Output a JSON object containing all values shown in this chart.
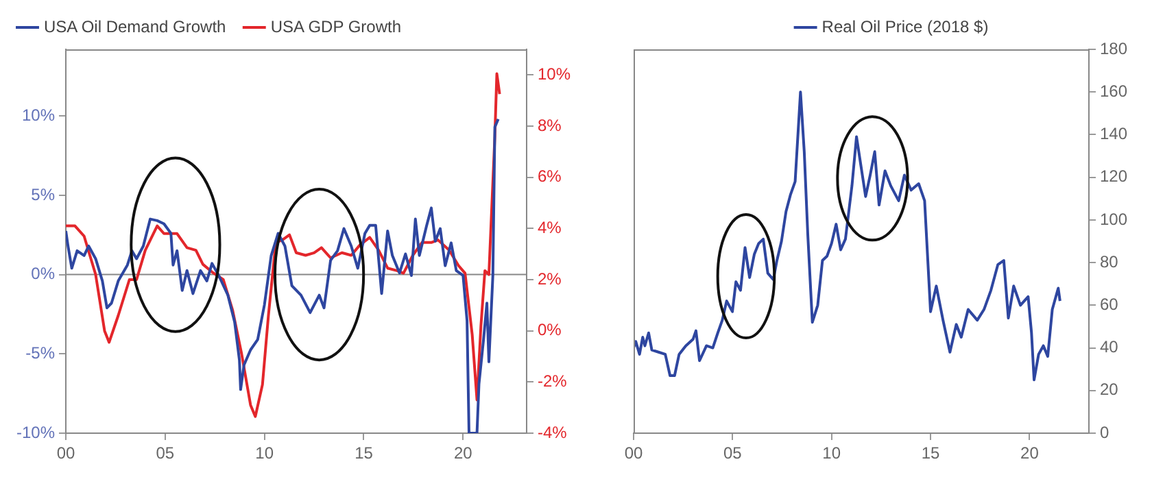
{
  "chart_data": [
    {
      "type": "line",
      "xlim": [
        0,
        23.2
      ],
      "xticks": [
        {
          "value": 0,
          "label": "00"
        },
        {
          "value": 5,
          "label": "05"
        },
        {
          "value": 10,
          "label": "10"
        },
        {
          "value": 15,
          "label": "15"
        },
        {
          "value": 20,
          "label": "20"
        }
      ],
      "ylim": [
        -10,
        14.2
      ],
      "yticks": [
        {
          "value": -10,
          "label": "-10%"
        },
        {
          "value": -5,
          "label": "-5%"
        },
        {
          "value": 0,
          "label": "0%"
        },
        {
          "value": 5,
          "label": "5%"
        },
        {
          "value": 10,
          "label": "10%"
        }
      ],
      "y2lim": [
        -4,
        11
      ],
      "y2ticks": [
        {
          "value": -4,
          "label": "-4%"
        },
        {
          "value": -2,
          "label": "-2%"
        },
        {
          "value": 0,
          "label": "0%"
        },
        {
          "value": 2,
          "label": "2%"
        },
        {
          "value": 4,
          "label": "4%"
        },
        {
          "value": 6,
          "label": "6%"
        },
        {
          "value": 8,
          "label": "8%"
        },
        {
          "value": 10,
          "label": "10%"
        }
      ],
      "grid": false,
      "legend": "top left",
      "marker": "none",
      "line_style": "solid",
      "ref_lines": [
        {
          "axis": "y",
          "value": 0,
          "color": "#888888"
        }
      ],
      "series": [
        {
          "name": "USA Oil Demand Growth",
          "color": "#2e46a0",
          "x": [
            0,
            0.11,
            0.3,
            0.57,
            0.92,
            1.15,
            1.5,
            1.84,
            2.07,
            2.3,
            2.64,
            3.1,
            3.33,
            3.56,
            3.9,
            4.25,
            4.6,
            4.94,
            5.29,
            5.4,
            5.6,
            5.86,
            6.1,
            6.4,
            6.78,
            7.1,
            7.36,
            7.7,
            8.16,
            8.5,
            8.74,
            8.8,
            8.97,
            9.3,
            9.66,
            10,
            10.34,
            10.69,
            11.03,
            11.38,
            11.84,
            12.3,
            12.76,
            13.0,
            13.33,
            13.68,
            14.0,
            14.37,
            14.7,
            15.06,
            15.3,
            15.6,
            15.9,
            16.2,
            16.44,
            16.8,
            17.1,
            17.4,
            17.6,
            17.8,
            18.16,
            18.4,
            18.6,
            18.85,
            19.1,
            19.4,
            19.66,
            20,
            20.2,
            20.3,
            20.7,
            20.8,
            21.03,
            21.2,
            21.3,
            21.5,
            21.6,
            21.77
          ],
          "values": [
            2.75,
            1.8,
            0.4,
            1.5,
            1.2,
            1.8,
            1.0,
            -0.4,
            -2.1,
            -1.8,
            -0.4,
            0.6,
            1.5,
            1.0,
            1.8,
            3.5,
            3.4,
            3.2,
            2.6,
            0.6,
            1.5,
            -1.0,
            0.25,
            -1.2,
            0.25,
            -0.4,
            0.7,
            -0.06,
            -1.3,
            -3.0,
            -5.4,
            -7.25,
            -5.7,
            -4.75,
            -4.1,
            -1.9,
            1.2,
            2.6,
            1.8,
            -0.7,
            -1.3,
            -2.4,
            -1.3,
            -2.1,
            0.9,
            1.5,
            2.9,
            1.8,
            0.4,
            2.6,
            3.1,
            3.1,
            -1.2,
            2.75,
            1.2,
            0.1,
            1.3,
            -0.06,
            3.5,
            1.2,
            3.06,
            4.2,
            2.1,
            2.9,
            0.56,
            2.0,
            0.25,
            -0.06,
            -2.9,
            -10,
            -10,
            -6.9,
            -4.1,
            -1.8,
            -5.5,
            -0.06,
            9.3,
            9.8
          ]
        },
        {
          "name": "USA GDP Growth",
          "color": "#e3262b",
          "axis": "y2",
          "x": [
            0,
            0.46,
            0.92,
            1.5,
            1.95,
            2.18,
            2.64,
            3.2,
            3.56,
            4.0,
            4.6,
            4.94,
            5.6,
            6.1,
            6.55,
            6.9,
            7.36,
            7.93,
            8.4,
            8.85,
            9.3,
            9.54,
            9.9,
            10.2,
            10.57,
            10.9,
            11.26,
            11.6,
            12.07,
            12.5,
            12.87,
            13.33,
            13.9,
            14.37,
            14.8,
            15.3,
            15.75,
            16.2,
            16.67,
            17.0,
            17.47,
            17.93,
            18.4,
            18.74,
            19.3,
            19.77,
            20.1,
            20.46,
            20.7,
            20.9,
            21.1,
            21.3,
            21.6,
            21.7,
            21.84
          ],
          "values": [
            4.1,
            4.1,
            3.7,
            2.2,
            0.0,
            -0.45,
            0.6,
            2.0,
            2.0,
            3.15,
            4.1,
            3.8,
            3.8,
            3.25,
            3.15,
            2.6,
            2.3,
            2.0,
            0.8,
            -0.9,
            -2.9,
            -3.35,
            -2.1,
            0.6,
            3.45,
            3.55,
            3.75,
            3.05,
            2.95,
            3.05,
            3.25,
            2.85,
            3.05,
            2.95,
            3.35,
            3.65,
            3.15,
            2.45,
            2.35,
            2.25,
            2.95,
            3.45,
            3.45,
            3.55,
            3.15,
            2.55,
            2.25,
            -0.15,
            -2.7,
            0.2,
            2.35,
            2.2,
            7.6,
            10.05,
            9.25
          ]
        }
      ]
    },
    {
      "type": "line",
      "xlim": [
        0,
        23
      ],
      "xticks": [
        {
          "value": 0,
          "label": "00"
        },
        {
          "value": 5,
          "label": "05"
        },
        {
          "value": 10,
          "label": "10"
        },
        {
          "value": 15,
          "label": "15"
        },
        {
          "value": 20,
          "label": "20"
        }
      ],
      "ylim": [
        0,
        180
      ],
      "yticks": [
        0,
        20,
        40,
        60,
        80,
        100,
        120,
        140,
        160,
        180
      ],
      "grid": false,
      "legend": "top",
      "marker": "none",
      "line_style": "solid",
      "series": [
        {
          "name": "Real Oil Price (2018 $)",
          "color": "#2e46a0",
          "x": [
            0,
            0.11,
            0.3,
            0.46,
            0.57,
            0.76,
            0.92,
            1.26,
            1.6,
            1.84,
            2.07,
            2.3,
            2.64,
            3.0,
            3.15,
            3.33,
            3.68,
            4.0,
            4.25,
            4.48,
            4.7,
            4.99,
            5.17,
            5.4,
            5.63,
            5.86,
            6.1,
            6.32,
            6.55,
            6.78,
            7.06,
            7.24,
            7.47,
            7.7,
            7.93,
            8.16,
            8.43,
            8.62,
            8.8,
            9.03,
            9.3,
            9.54,
            9.77,
            10,
            10.23,
            10.46,
            10.7,
            11.03,
            11.26,
            11.49,
            11.72,
            11.95,
            12.18,
            12.4,
            12.7,
            12.99,
            13.39,
            13.68,
            14.02,
            14.4,
            14.7,
            15.0,
            15.29,
            15.63,
            15.98,
            16.3,
            16.55,
            16.9,
            17.36,
            17.7,
            18.05,
            18.4,
            18.7,
            18.93,
            19.2,
            19.54,
            19.93,
            20.1,
            20.23,
            20.46,
            20.7,
            20.92,
            21.15,
            21.45,
            21.54
          ],
          "values": [
            40,
            43,
            37,
            45,
            41,
            47,
            39,
            38,
            37,
            27,
            27,
            37,
            41,
            44,
            48,
            34,
            41,
            40,
            47,
            53,
            62,
            57,
            71,
            67,
            87,
            73,
            84,
            89,
            91,
            75,
            72,
            81,
            90,
            104,
            112,
            118,
            160,
            132,
            93,
            52,
            60,
            81,
            83,
            89,
            98,
            86,
            91,
            116,
            139,
            125,
            111,
            121,
            132,
            107,
            123,
            116,
            109,
            121,
            114,
            117,
            109,
            57,
            69,
            53,
            38,
            51,
            45,
            58,
            53,
            58,
            67,
            79,
            81,
            54,
            69,
            60,
            64,
            47,
            25,
            37,
            41,
            36,
            58,
            68,
            62
          ]
        }
      ]
    }
  ]
}
